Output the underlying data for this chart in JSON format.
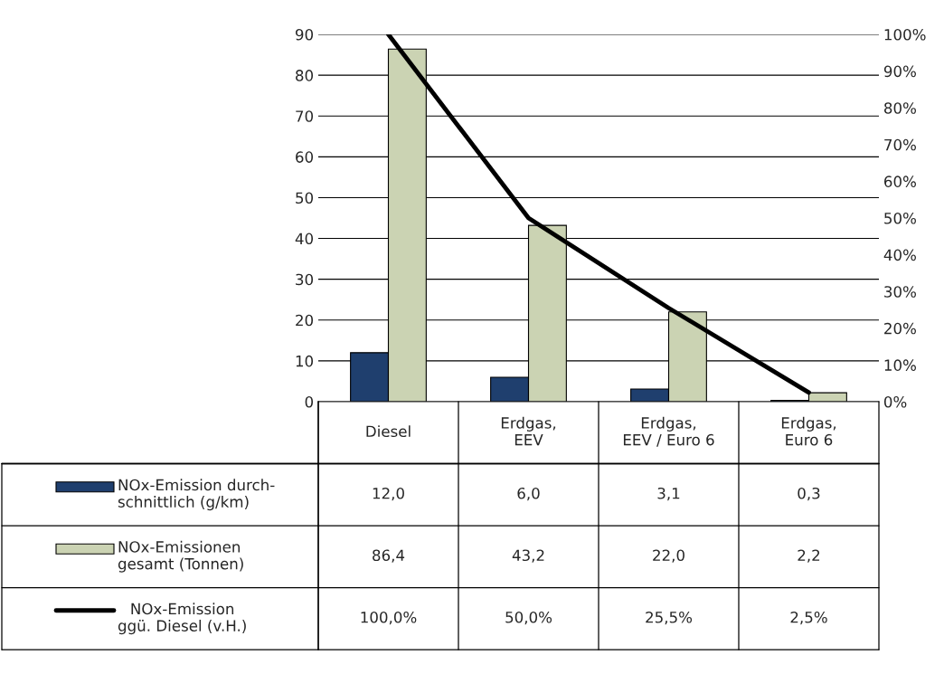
{
  "chart_data": {
    "type": "bar",
    "categories": [
      "Diesel",
      "Erdgas,\nEEV",
      "Erdgas,\nEEV / Euro 6",
      "Erdgas,\nEuro 6"
    ],
    "series": [
      {
        "name": "NOx-Emission durch-\nschnittlich (g/km)",
        "color": "#1f3f6e",
        "values": [
          12.0,
          6.0,
          3.1,
          0.3
        ],
        "value_labels": [
          "12,0",
          "6,0",
          "3,1",
          "0,3"
        ]
      },
      {
        "name": "NOx-Emissionen\ngesamt (Tonnen)",
        "color": "#cbd3b3",
        "values": [
          86.4,
          43.2,
          22.0,
          2.2
        ],
        "value_labels": [
          "86,4",
          "43,2",
          "22,0",
          "2,2"
        ]
      },
      {
        "name": "NOx-Emission\nggü. Diesel (v.H.)",
        "type": "line",
        "axis": "y2",
        "color": "#000000",
        "values": [
          100.0,
          50.0,
          25.5,
          2.5
        ],
        "value_labels": [
          "100,0%",
          "50,0%",
          "25,5%",
          "2,5%"
        ]
      }
    ],
    "ylim": [
      0,
      90
    ],
    "yticks": [
      0,
      10,
      20,
      30,
      40,
      50,
      60,
      70,
      80,
      90
    ],
    "y2lim": [
      0,
      100
    ],
    "y2ticks": [
      {
        "value": 0,
        "label": "0%"
      },
      {
        "value": 10,
        "label": "10%"
      },
      {
        "value": 20,
        "label": "20%"
      },
      {
        "value": 30,
        "label": "30%"
      },
      {
        "value": 40,
        "label": "40%"
      },
      {
        "value": 50,
        "label": "50%"
      },
      {
        "value": 60,
        "label": "60%"
      },
      {
        "value": 70,
        "label": "70%"
      },
      {
        "value": 80,
        "label": "80%"
      },
      {
        "value": 90,
        "label": "90%"
      },
      {
        "value": 100,
        "label": "100%"
      }
    ],
    "grid": "y",
    "legend": "bottom",
    "marker": "none",
    "line_style": "solid"
  }
}
